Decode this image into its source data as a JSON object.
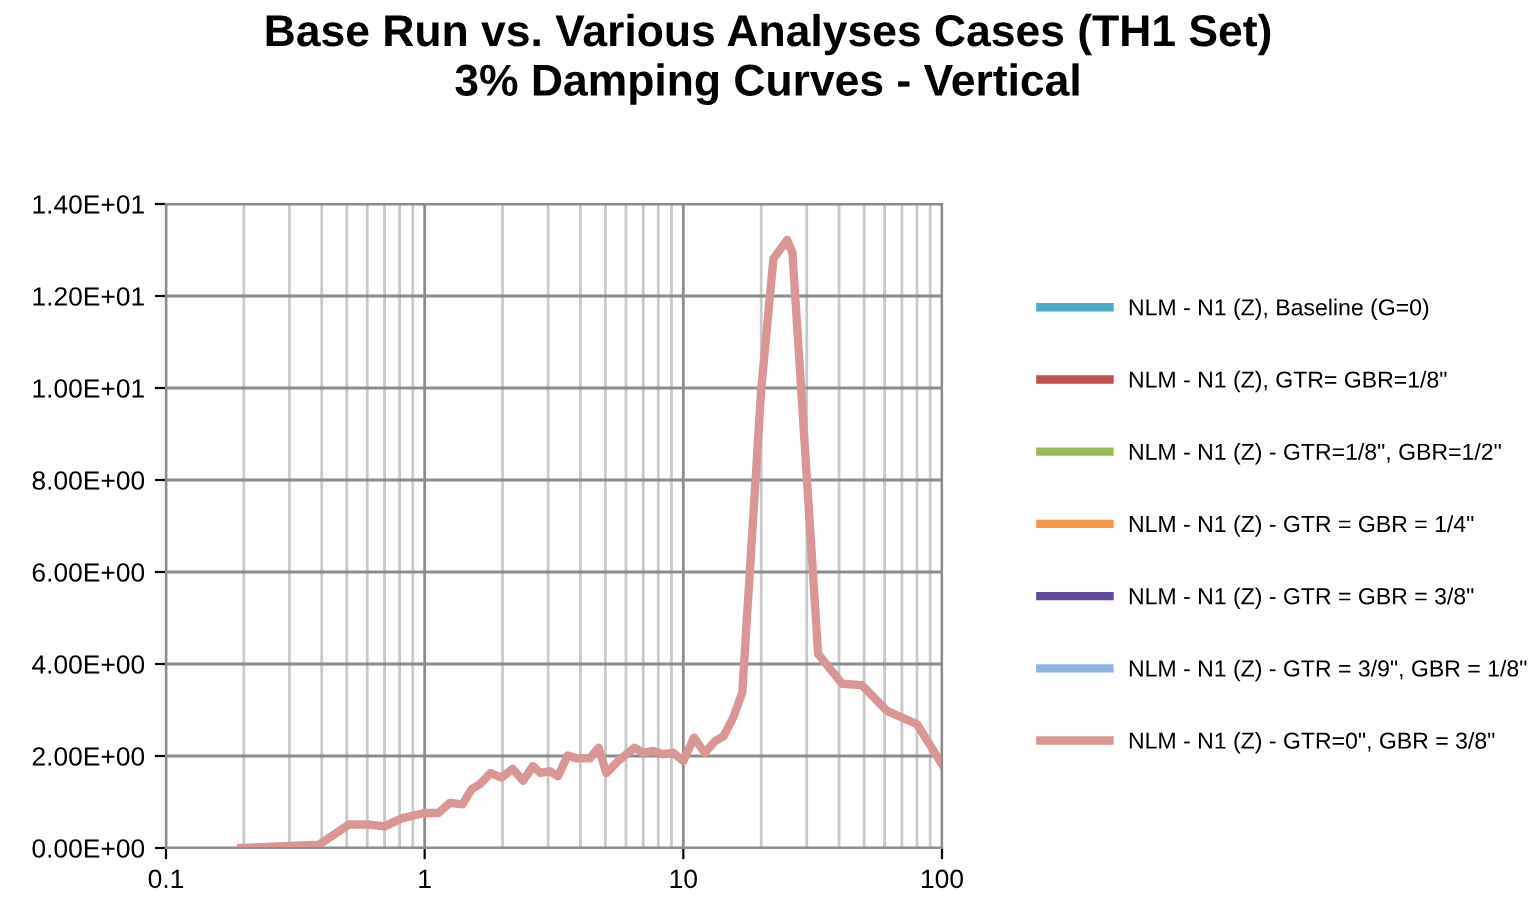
{
  "chart_data": {
    "type": "line",
    "title": "Base Run vs. Various Analyses Cases (TH1 Set)\n3% Damping Curves - Vertical",
    "x": [
      0.195,
      0.39,
      0.51,
      0.61,
      0.7,
      0.82,
      1.0,
      1.13,
      1.25,
      1.4,
      1.52,
      1.63,
      1.8,
      1.98,
      2.19,
      2.4,
      2.62,
      2.81,
      3.04,
      3.28,
      3.57,
      3.86,
      4.35,
      4.7,
      5.04,
      5.67,
      6.47,
      7.0,
      7.64,
      8.36,
      9.13,
      10.0,
      11.0,
      12.1,
      13.3,
      14.3,
      15.6,
      16.9,
      20.0,
      22.3,
      25.2,
      26.4,
      33.2,
      41.1,
      49.0,
      61.3,
      80.1,
      100
    ],
    "series": [
      {
        "name": "NLM - N1 (Z), Baseline (G=0)",
        "color": "#4bacc6",
        "values": [
          null,
          null,
          null,
          null,
          null,
          null,
          null,
          null,
          null,
          null,
          null,
          null,
          null,
          null,
          null,
          null,
          null,
          null,
          null,
          null,
          null,
          null,
          null,
          null,
          null,
          null,
          null,
          null,
          null,
          null,
          null,
          null,
          null,
          null,
          null,
          null,
          null,
          null,
          null,
          null,
          null,
          null,
          null,
          null,
          null,
          null,
          null,
          null
        ]
      },
      {
        "name": "NLM - N1 (Z), GTR= GBR=1/8\"",
        "color": "#c0504d",
        "values": [
          null,
          null,
          null,
          null,
          null,
          null,
          null,
          null,
          null,
          null,
          null,
          null,
          null,
          null,
          null,
          null,
          null,
          null,
          null,
          null,
          null,
          null,
          null,
          null,
          null,
          null,
          null,
          null,
          null,
          null,
          null,
          null,
          null,
          null,
          null,
          null,
          null,
          null,
          null,
          null,
          null,
          null,
          null,
          null,
          null,
          null,
          null,
          null
        ]
      },
      {
        "name": "NLM - N1 (Z) - GTR=1/8\", GBR=1/2\"",
        "color": "#9bbb59",
        "values": [
          null,
          null,
          null,
          null,
          null,
          null,
          null,
          null,
          null,
          null,
          null,
          null,
          null,
          null,
          null,
          null,
          null,
          null,
          null,
          null,
          null,
          null,
          null,
          null,
          null,
          null,
          null,
          null,
          null,
          null,
          null,
          null,
          null,
          null,
          null,
          null,
          null,
          null,
          null,
          null,
          null,
          null,
          null,
          null,
          null,
          null,
          null,
          null
        ]
      },
      {
        "name": "NLM - N1 (Z) - GTR = GBR = 1/4\"",
        "color": "#f79646",
        "values": [
          null,
          null,
          null,
          null,
          null,
          null,
          null,
          null,
          null,
          null,
          null,
          null,
          null,
          null,
          null,
          null,
          null,
          null,
          null,
          null,
          null,
          null,
          null,
          null,
          null,
          null,
          null,
          null,
          null,
          null,
          null,
          null,
          null,
          null,
          null,
          null,
          null,
          null,
          null,
          null,
          null,
          null,
          null,
          null,
          null,
          null,
          null,
          null
        ]
      },
      {
        "name": "NLM - N1 (Z) - GTR = GBR = 3/8\"",
        "color": "#604a9b",
        "values": [
          null,
          null,
          null,
          null,
          null,
          null,
          null,
          null,
          null,
          null,
          null,
          null,
          null,
          null,
          null,
          null,
          null,
          null,
          null,
          null,
          null,
          null,
          null,
          null,
          null,
          null,
          null,
          null,
          null,
          null,
          null,
          null,
          null,
          null,
          null,
          null,
          null,
          null,
          null,
          null,
          null,
          null,
          null,
          null,
          null,
          null,
          null,
          null
        ]
      },
      {
        "name": "NLM - N1 (Z) - GTR = 3/9\", GBR = 1/8\"",
        "color": "#8db3e2",
        "values": [
          null,
          null,
          null,
          null,
          null,
          null,
          null,
          null,
          null,
          null,
          null,
          null,
          null,
          null,
          null,
          null,
          null,
          null,
          null,
          null,
          null,
          null,
          null,
          null,
          null,
          null,
          null,
          null,
          null,
          null,
          null,
          null,
          null,
          null,
          null,
          null,
          null,
          null,
          null,
          null,
          null,
          null,
          null,
          null,
          null,
          null,
          null,
          null
        ]
      },
      {
        "name": "NLM - N1 (Z) - GTR=0\", GBR = 3/8\"",
        "color": "#d99694",
        "values": [
          0,
          0.07,
          0.51,
          0.51,
          0.47,
          0.65,
          0.76,
          0.76,
          0.98,
          0.95,
          1.28,
          1.38,
          1.63,
          1.53,
          1.72,
          1.46,
          1.78,
          1.63,
          1.67,
          1.56,
          2.01,
          1.95,
          1.95,
          2.18,
          1.63,
          1.92,
          2.18,
          2.07,
          2.11,
          2.04,
          2.07,
          1.89,
          2.4,
          2.07,
          2.33,
          2.43,
          2.84,
          3.38,
          9.97,
          12.81,
          13.22,
          12.95,
          4.22,
          3.57,
          3.54,
          2.98,
          2.69,
          1.82
        ]
      }
    ],
    "log": "x",
    "xlim": [
      0.1,
      100
    ],
    "xticks": [
      0.1,
      1,
      10,
      100
    ],
    "ylim": [
      0,
      14
    ],
    "yticks": [
      {
        "value": 0,
        "label": "0.00E+00"
      },
      {
        "value": 2,
        "label": "2.00E+00"
      },
      {
        "value": 4,
        "label": "4.00E+00"
      },
      {
        "value": 6,
        "label": "6.00E+00"
      },
      {
        "value": 8,
        "label": "8.00E+00"
      },
      {
        "value": 10,
        "label": "1.00E+01"
      },
      {
        "value": 12,
        "label": "1.20E+01"
      },
      {
        "value": 14,
        "label": "1.40E+01"
      }
    ],
    "grid": true,
    "legend": "right",
    "marker": "none",
    "line_style": "solid"
  }
}
